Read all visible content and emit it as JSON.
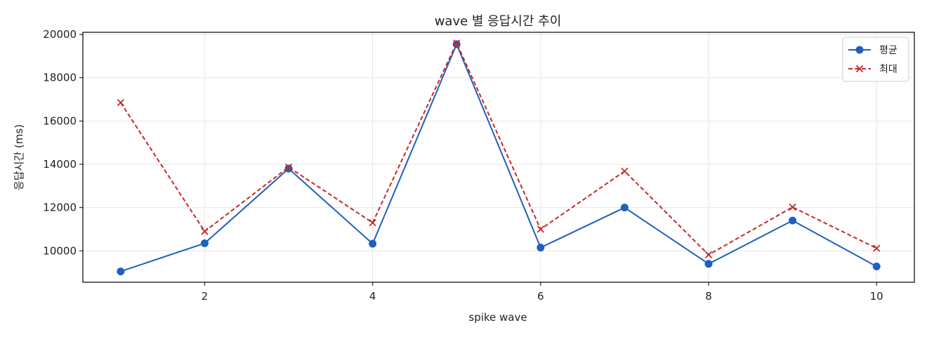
{
  "chart_data": {
    "type": "line",
    "title": "wave 별 응답시간 추이",
    "xlabel": "spike wave",
    "ylabel": "응답시간 (ms)",
    "x": [
      1,
      2,
      3,
      4,
      5,
      6,
      7,
      8,
      9,
      10
    ],
    "xlim": [
      0.55,
      10.45
    ],
    "ylim": [
      8550,
      20100
    ],
    "xticks": [
      2,
      4,
      6,
      8,
      10
    ],
    "yticks": [
      10000,
      12000,
      14000,
      16000,
      18000,
      20000
    ],
    "grid": true,
    "legend_position": "top-right",
    "series": [
      {
        "name": "평균",
        "color": "#1f5fbf",
        "line_style": "solid",
        "marker": "circle",
        "values": [
          9050,
          10350,
          13800,
          10330,
          19550,
          10150,
          12000,
          9400,
          11400,
          9280
        ]
      },
      {
        "name": "최대",
        "color": "#c62828",
        "line_style": "dashed",
        "marker": "x",
        "values": [
          16850,
          10900,
          13870,
          11300,
          19600,
          11000,
          13680,
          9820,
          12020,
          10120
        ]
      }
    ]
  }
}
